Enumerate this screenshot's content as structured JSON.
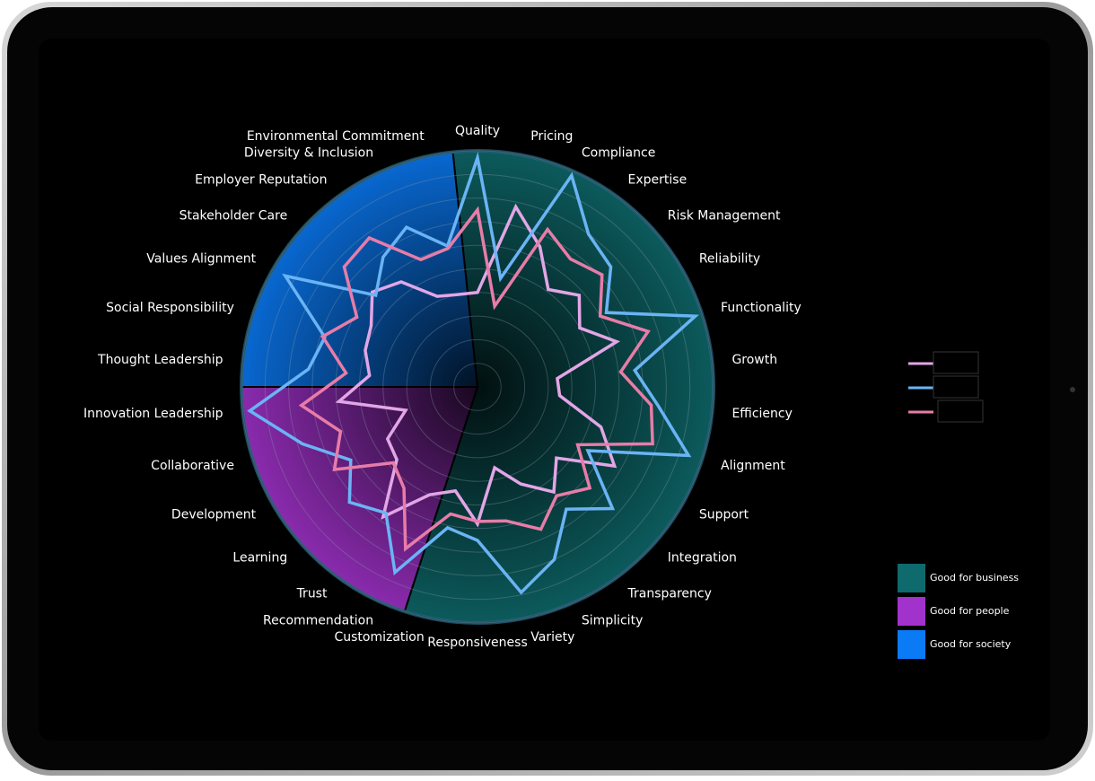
{
  "chart_data": {
    "type": "radar",
    "categories": [
      "Quality",
      "Pricing",
      "Compliance",
      "Expertise",
      "Risk Management",
      "Reliability",
      "Functionality",
      "Growth",
      "Efficiency",
      "Alignment",
      "Support",
      "Integration",
      "Transparency",
      "Simplicity",
      "Variety",
      "Responsiveness",
      "Customization",
      "Recommendation",
      "Trust",
      "Learning",
      "Development",
      "Collaborative",
      "Innovation Leadership",
      "Thought Leadership",
      "Social Responsibility",
      "Values Alignment",
      "Stakeholder Care",
      "Employer Reputation",
      "Diversity & Inclusion",
      "Environmental Commitment"
    ],
    "series": [
      {
        "color": "#e2a6e6",
        "values": [
          4.0,
          7.8,
          6.5,
          5.1,
          5.8,
          5.0,
          6.2,
          3.4,
          3.5,
          5.5,
          6.7,
          4.5,
          5.5,
          4.5,
          3.5,
          5.8,
          4.5,
          5.0,
          6.8,
          4.6,
          4.4,
          3.2,
          5.9,
          4.6,
          5.0,
          5.2,
          6.0,
          5.5,
          4.2,
          4.0
        ]
      },
      {
        "color": "#6ab4f5",
        "values": [
          9.7,
          4.7,
          9.8,
          8.0,
          7.6,
          6.3,
          9.7,
          6.7,
          7.7,
          9.4,
          5.4,
          7.7,
          6.4,
          8.0,
          8.9,
          6.5,
          6.1,
          8.6,
          6.6,
          7.3,
          6.2,
          7.8,
          9.7,
          7.2,
          6.8,
          9.4,
          5.8,
          6.8,
          7.4,
          6.1
        ]
      },
      {
        "color": "#e87ca8",
        "values": [
          7.5,
          3.5,
          7.3,
          6.7,
          7.1,
          6.0,
          7.6,
          6.1,
          7.4,
          7.8,
          4.9,
          6.4,
          5.7,
          6.6,
          5.8,
          5.7,
          5.5,
          7.5,
          5.3,
          4.8,
          7.0,
          6.1,
          7.5,
          5.6,
          6.9,
          5.9,
          7.6,
          7.8,
          5.9,
          6.0
        ]
      }
    ],
    "sectors": [
      {
        "label": "Good for business",
        "color": "#0e6a6c",
        "from": 0,
        "to": 16
      },
      {
        "label": "Good for people",
        "color": "#a232cc",
        "from": 17,
        "to": 22
      },
      {
        "label": "Good for society",
        "color": "#0a7af5",
        "from": 23,
        "to": 29
      }
    ],
    "rlim": [
      0,
      10
    ],
    "rticks": [
      1,
      2,
      3,
      4,
      5,
      6,
      7,
      8,
      9,
      10
    ],
    "grid": true
  }
}
